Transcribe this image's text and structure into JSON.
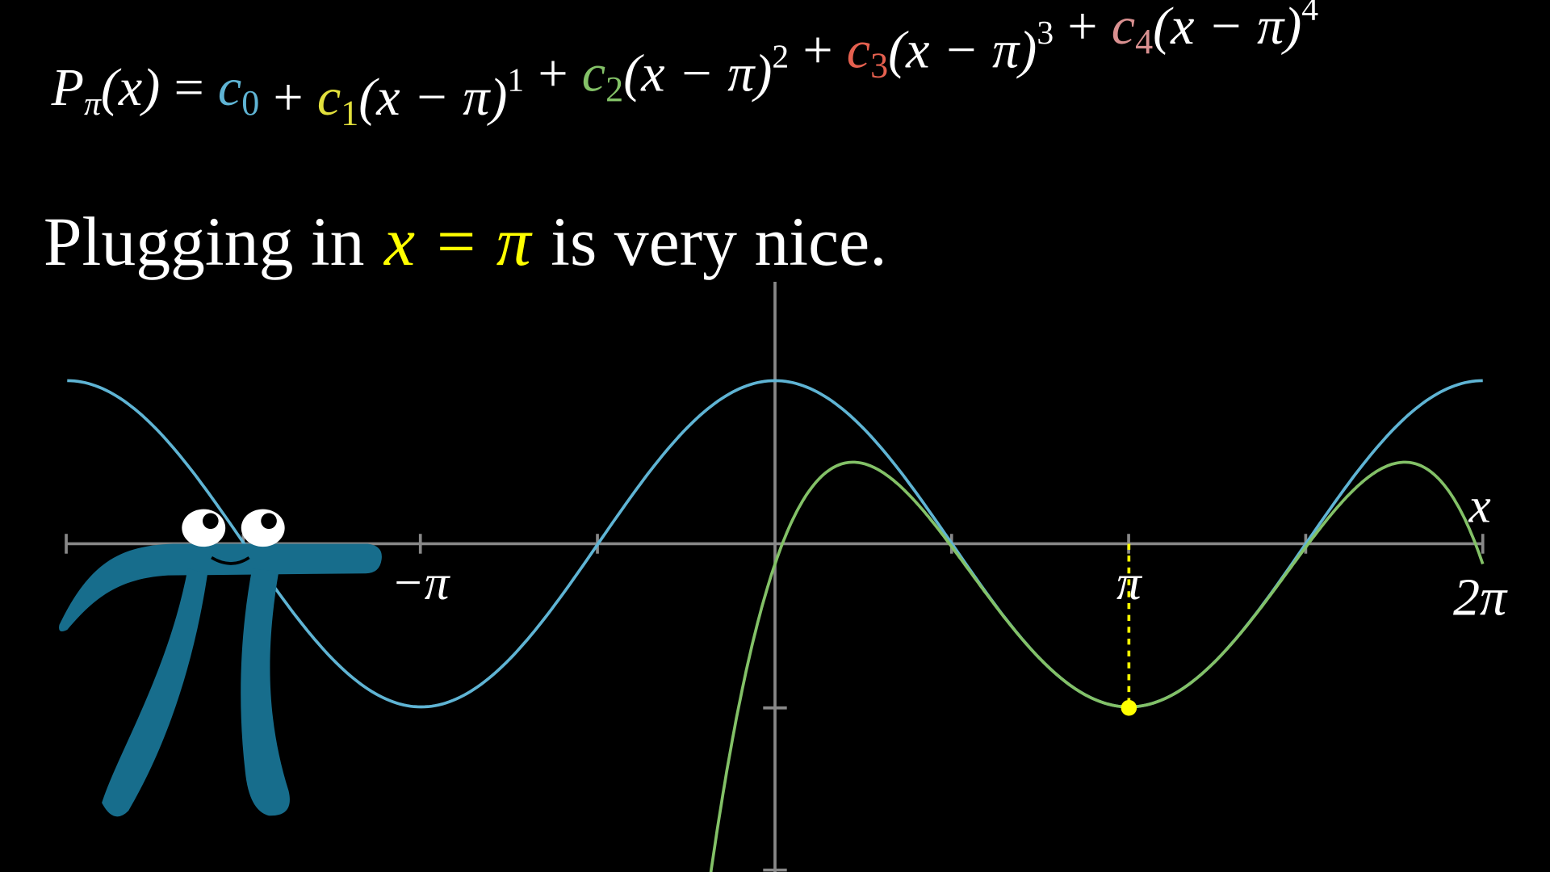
{
  "equation": {
    "lhs": {
      "symbol": "P",
      "sub": "π",
      "arg": "(x)"
    },
    "equals": "=",
    "terms": [
      {
        "sign": "",
        "coef": "c",
        "index": "0",
        "base": "",
        "power": "",
        "color": "#5fb4d4"
      },
      {
        "sign": "+",
        "coef": "c",
        "index": "1",
        "base": "(x − π)",
        "power": "1",
        "color": "#e2e03c"
      },
      {
        "sign": "+",
        "coef": "c",
        "index": "2",
        "base": "(x − π)",
        "power": "2",
        "color": "#83c167"
      },
      {
        "sign": "+",
        "coef": "c",
        "index": "3",
        "base": "(x − π)",
        "power": "3",
        "color": "#e5604f"
      },
      {
        "sign": "+",
        "coef": "c",
        "index": "4",
        "base": "(x − π)",
        "power": "4",
        "color": "#d99090"
      }
    ]
  },
  "caption": {
    "before": "Plugging in",
    "highlight": "x = π",
    "after": "is very nice."
  },
  "axis_labels": {
    "neg_pi": "−π",
    "pi": "π",
    "two_pi": "2π",
    "x": "x"
  }
}
